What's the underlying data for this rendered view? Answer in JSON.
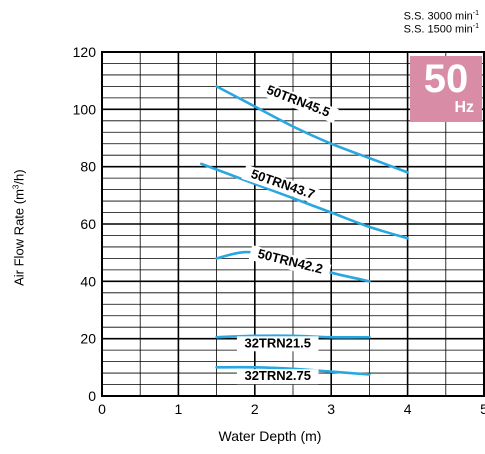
{
  "header": {
    "speed_line1": "S.S. 3000 min",
    "speed_line2": "S.S. 1500 min",
    "speed_exp": "-1"
  },
  "badge": {
    "value": "50",
    "unit": "Hz",
    "color": "#d98ca6"
  },
  "axes": {
    "ylabel_main": "Air Flow Rate (m",
    "ylabel_exp": "3",
    "ylabel_end": "/h)",
    "xlabel": "Water Depth (m)"
  },
  "chart_data": {
    "type": "line",
    "xlim": [
      0,
      5
    ],
    "ylim": [
      0,
      120
    ],
    "x_ticks": [
      "0",
      "1",
      "2",
      "3",
      "4",
      "5"
    ],
    "y_ticks": [
      "0",
      "20",
      "40",
      "60",
      "80",
      "100",
      "120"
    ],
    "grid": true,
    "line_color": "#29a7e1",
    "series": [
      {
        "name": "50TRN45.5",
        "points": [
          [
            1.5,
            108
          ],
          [
            2.0,
            101
          ],
          [
            2.5,
            94
          ],
          [
            3.0,
            88
          ],
          [
            3.5,
            83
          ],
          [
            4.0,
            78
          ]
        ]
      },
      {
        "name": "50TRN43.7",
        "points": [
          [
            1.3,
            81
          ],
          [
            2.0,
            74
          ],
          [
            2.5,
            69
          ],
          [
            3.0,
            64
          ],
          [
            3.5,
            59
          ],
          [
            4.0,
            55
          ]
        ]
      },
      {
        "name": "50TRN42.2",
        "points": [
          [
            1.5,
            48
          ],
          [
            1.8,
            50
          ],
          [
            2.0,
            50
          ],
          [
            2.3,
            48.5
          ],
          [
            2.6,
            46
          ],
          [
            3.0,
            43
          ],
          [
            3.5,
            40
          ]
        ]
      },
      {
        "name": "32TRN21.5",
        "points": [
          [
            1.5,
            20.5
          ],
          [
            2.0,
            21
          ],
          [
            2.5,
            21
          ],
          [
            3.0,
            20.5
          ],
          [
            3.5,
            20.5
          ]
        ]
      },
      {
        "name": "32TRN2.75",
        "points": [
          [
            1.5,
            10
          ],
          [
            2.0,
            10
          ],
          [
            2.5,
            9.5
          ],
          [
            3.0,
            8.5
          ],
          [
            3.5,
            7.5
          ]
        ]
      }
    ]
  }
}
